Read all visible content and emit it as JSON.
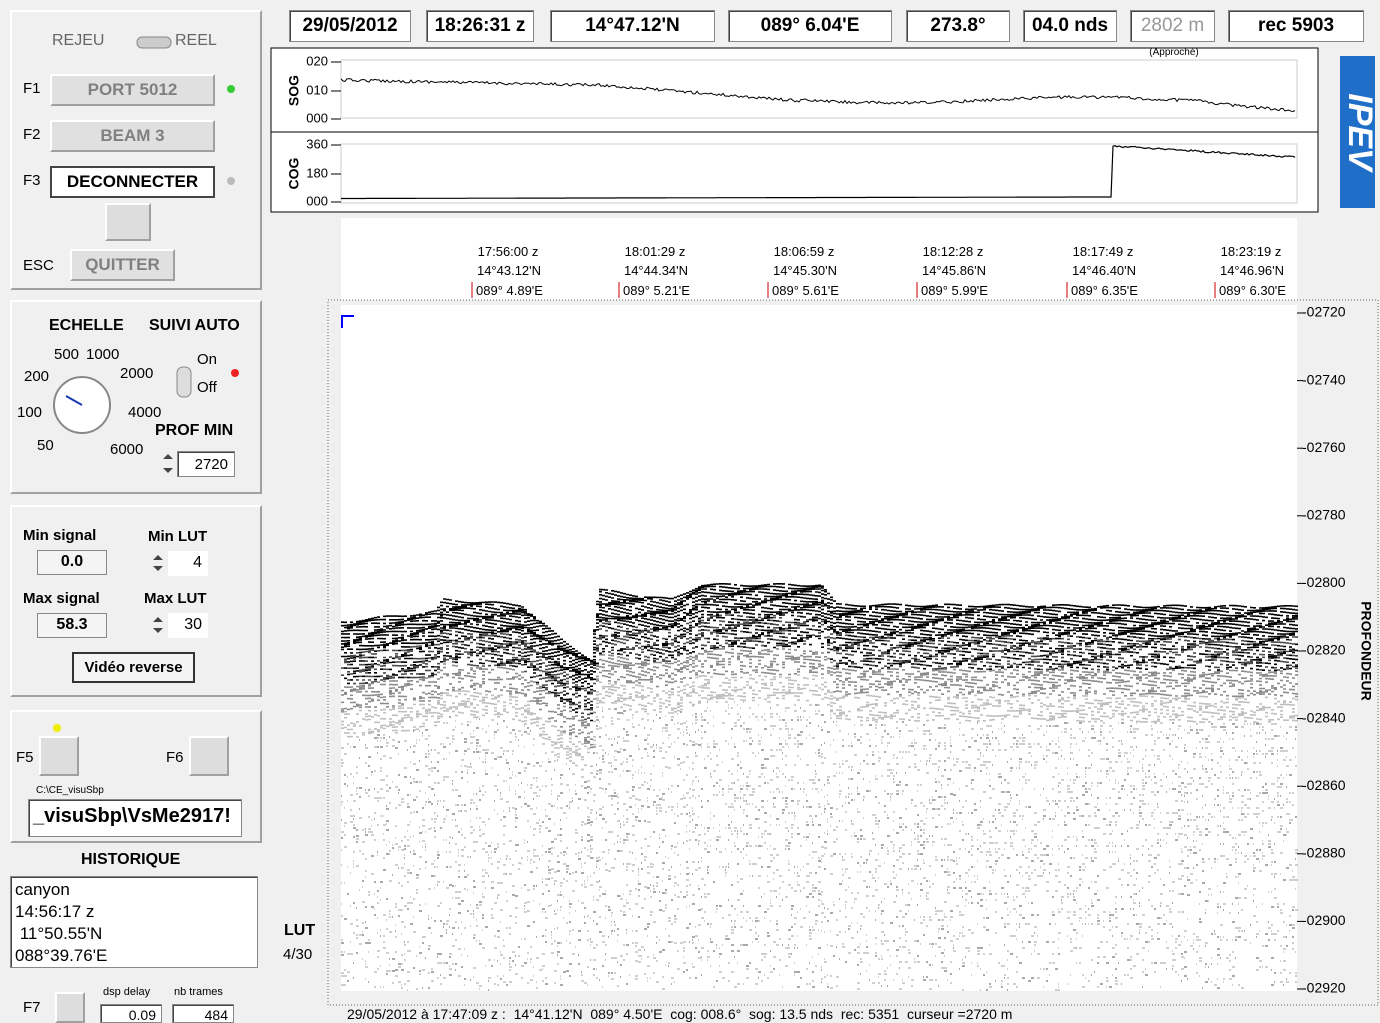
{
  "status_bar": {
    "date": "29/05/2012",
    "time": "18:26:31 z",
    "lat": "14°47.12'N",
    "lon": "089° 6.04'E",
    "heading": "273.8°",
    "speed": "04.0 nds",
    "depth": "2802 m",
    "depth_note": "(Approché)",
    "record": "rec 5903"
  },
  "left_panel": {
    "mode": {
      "left": "REJEU",
      "right": "REEL"
    },
    "buttons": [
      {
        "key": "F1",
        "label": "PORT 5012"
      },
      {
        "key": "F2",
        "label": "BEAM 3"
      },
      {
        "key": "F3",
        "label": "DECONNECTER"
      },
      {
        "key": "ESC",
        "label": "QUITTER"
      }
    ],
    "scale": {
      "title": "ECHELLE",
      "dial_labels": [
        "500",
        "1000",
        "200",
        "2000",
        "100",
        "4000",
        "50",
        "6000"
      ]
    },
    "auto_follow": {
      "title": "SUIVI AUTO",
      "on": "On",
      "off": "Off"
    },
    "min_depth": {
      "title": "PROF MIN",
      "value": "2720"
    },
    "signal": {
      "min_signal_label": "Min signal",
      "min_signal": "0.0",
      "max_signal_label": "Max signal",
      "max_signal": "58.3",
      "min_lut_label": "Min LUT",
      "min_lut": "4",
      "max_lut_label": "Max LUT",
      "max_lut": "30",
      "reverse": "Vidéo reverse"
    },
    "file": {
      "f5": "F5",
      "f6": "F6",
      "dir": "C:\\CE_visuSbp",
      "path": "_visuSbp\\VsMe2917!"
    },
    "history": {
      "title": "HISTORIQUE",
      "lines": [
        "canyon",
        "14:56:17 z",
        " 11°50.55'N",
        "088°39.76'E"
      ]
    },
    "bottom": {
      "key": "F7",
      "dsp_delay_label": "dsp delay",
      "dsp_delay": "0.09",
      "frames_label": "nb trames",
      "frames": "484"
    }
  },
  "lut": {
    "title": "LUT",
    "value": "4/30"
  },
  "sog": {
    "label": "SOG",
    "ticks": [
      "020",
      "010",
      "000"
    ]
  },
  "cog": {
    "label": "COG",
    "ticks": [
      "360",
      "180",
      "000"
    ]
  },
  "logo": "IPEV",
  "markers": [
    {
      "time": "17:56:00 z",
      "lat": "14°43.12'N",
      "lon": "089° 4.89'E"
    },
    {
      "time": "18:01:29 z",
      "lat": "14°44.34'N",
      "lon": "089° 5.21'E"
    },
    {
      "time": "18:06:59 z",
      "lat": "14°45.30'N",
      "lon": "089° 5.61'E"
    },
    {
      "time": "18:12:28 z",
      "lat": "14°45.86'N",
      "lon": "089° 5.99'E"
    },
    {
      "time": "18:17:49 z",
      "lat": "14°46.40'N",
      "lon": "089° 6.35'E"
    },
    {
      "time": "18:23:19 z",
      "lat": "14°46.96'N",
      "lon": "089° 6.30'E"
    }
  ],
  "depth_axis": {
    "label": "PROFONDEUR",
    "ticks": [
      "-02720",
      "-02740",
      "-02760",
      "-02780",
      "-02800",
      "-02820",
      "-02840",
      "-02860",
      "-02880",
      "-02900",
      "-02920"
    ]
  },
  "footer": "29/05/2012 à 17:47:09 z :  14°41.12'N  089° 4.50'E  cog: 008.6°  sog: 13.5 nds  rec: 5351  curseur =2720 m"
}
